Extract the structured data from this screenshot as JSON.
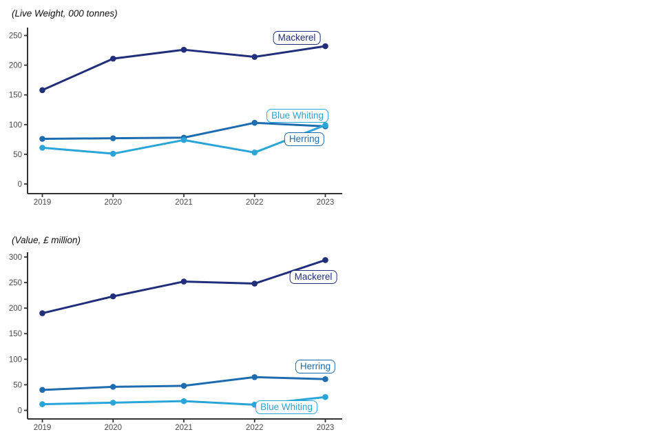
{
  "page": {
    "background": "#ffffff",
    "axis_color": "#333333",
    "tick_label_color": "#4a4a4a"
  },
  "chart_data": [
    {
      "id": "live_weight",
      "type": "line",
      "title": "(Live Weight, 000 tonnes)",
      "categories": [
        "2019",
        "2020",
        "2021",
        "2022",
        "2023"
      ],
      "y_ticks": [
        0,
        50,
        100,
        150,
        200,
        250
      ],
      "ylim": [
        0,
        265
      ],
      "xlabel": "",
      "ylabel": "",
      "grid": false,
      "legend": "inline-labels",
      "series": [
        {
          "name": "Mackerel",
          "color": "#212e7c",
          "values": [
            158,
            211,
            226,
            214,
            232
          ]
        },
        {
          "name": "Herring",
          "color": "#1e6cb0",
          "values": [
            76,
            77,
            78,
            103,
            97
          ]
        },
        {
          "name": "Blue Whiting",
          "color": "#29a5d8",
          "values": [
            61,
            51,
            74,
            53,
            99
          ]
        }
      ]
    },
    {
      "id": "value",
      "type": "line",
      "title": "(Value, £ million)",
      "categories": [
        "2019",
        "2020",
        "2021",
        "2022",
        "2023"
      ],
      "y_ticks": [
        0,
        50,
        100,
        150,
        200,
        250,
        300
      ],
      "ylim": [
        0,
        310
      ],
      "xlabel": "",
      "ylabel": "",
      "grid": false,
      "legend": "inline-labels",
      "series": [
        {
          "name": "Mackerel",
          "color": "#212e7c",
          "values": [
            190,
            223,
            252,
            248,
            294
          ]
        },
        {
          "name": "Herring",
          "color": "#1e6cb0",
          "values": [
            40,
            46,
            48,
            65,
            61
          ]
        },
        {
          "name": "Blue Whiting",
          "color": "#29a5d8",
          "values": [
            12,
            15,
            18,
            11,
            26
          ]
        }
      ]
    }
  ]
}
